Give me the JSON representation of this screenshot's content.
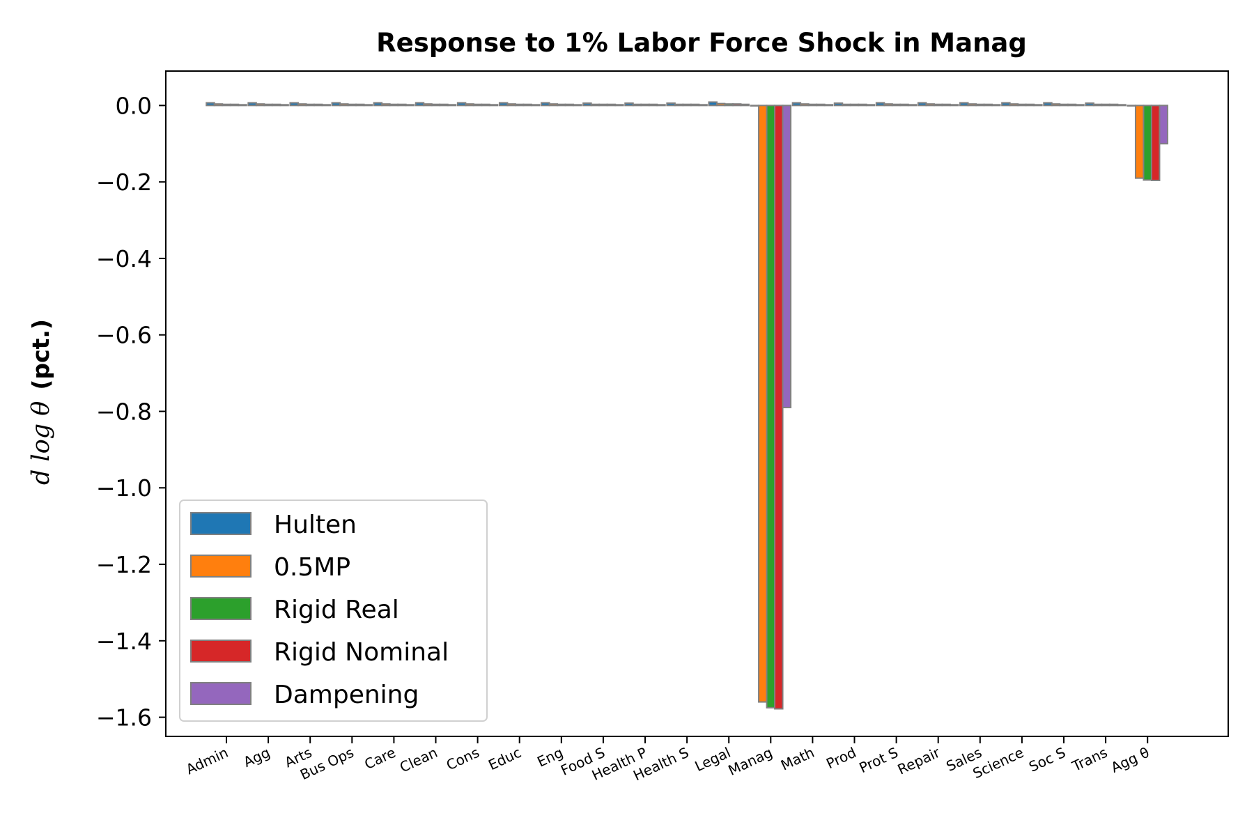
{
  "chart_data": {
    "type": "bar",
    "title": "Response to 1% Labor Force Shock in Manag",
    "ylabel_math": "d log θ",
    "ylabel_text": "(pct.)",
    "xlabel": "",
    "ylim": [
      -1.65,
      0.09
    ],
    "yticks": [
      0.0,
      -0.2,
      -0.4,
      -0.6,
      -0.8,
      -1.0,
      -1.2,
      -1.4,
      -1.6
    ],
    "ytick_labels": [
      "0.0",
      "−0.2",
      "−0.4",
      "−0.6",
      "−0.8",
      "−1.0",
      "−1.2",
      "−1.4",
      "−1.6"
    ],
    "categories": [
      "Admin",
      "Agg",
      "Arts",
      "Bus Ops",
      "Care",
      "Clean",
      "Cons",
      "Educ",
      "Eng",
      "Food S",
      "Health P",
      "Health S",
      "Legal",
      "Manag",
      "Math",
      "Prod",
      "Prot S",
      "Repair",
      "Sales",
      "Science",
      "Soc S",
      "Trans",
      "Agg θ"
    ],
    "legend_position": "lower-left",
    "bar_edge_color": "#808080",
    "series": [
      {
        "name": "Hulten",
        "color": "#1f77b4",
        "values": [
          0.007,
          0.007,
          0.007,
          0.007,
          0.007,
          0.007,
          0.007,
          0.007,
          0.007,
          0.006,
          0.006,
          0.006,
          0.009,
          0,
          0.007,
          0.006,
          0.007,
          0.007,
          0.007,
          0.007,
          0.007,
          0.006,
          0
        ]
      },
      {
        "name": "0.5MP",
        "color": "#ff7f0e",
        "values": [
          0.004,
          0.004,
          0.004,
          0.004,
          0.004,
          0.004,
          0.004,
          0.004,
          0.004,
          0.003,
          0.003,
          0.003,
          0.005,
          -1.56,
          0.004,
          0.003,
          0.004,
          0.004,
          0.004,
          0.004,
          0.004,
          0.003,
          -0.19
        ]
      },
      {
        "name": "Rigid Real",
        "color": "#2ca02c",
        "values": [
          0.003,
          0.003,
          0.003,
          0.003,
          0.003,
          0.003,
          0.003,
          0.003,
          0.003,
          0.003,
          0.003,
          0.003,
          0.004,
          -1.575,
          0.003,
          0.003,
          0.003,
          0.003,
          0.003,
          0.003,
          0.003,
          0.003,
          -0.195
        ]
      },
      {
        "name": "Rigid Nominal",
        "color": "#d62728",
        "values": [
          0.003,
          0.003,
          0.003,
          0.003,
          0.003,
          0.003,
          0.003,
          0.003,
          0.003,
          0.003,
          0.003,
          0.003,
          0.004,
          -1.578,
          0.003,
          0.003,
          0.003,
          0.003,
          0.003,
          0.003,
          0.003,
          0.003,
          -0.196
        ]
      },
      {
        "name": "Dampening",
        "color": "#9467bd",
        "values": [
          0.002,
          0.002,
          0.002,
          0.002,
          0.002,
          0.002,
          0.002,
          0.002,
          0.002,
          0.002,
          0.002,
          0.002,
          0.003,
          -0.79,
          0.002,
          0.002,
          0.002,
          0.002,
          0.002,
          0.002,
          0.002,
          0.002,
          -0.1
        ]
      }
    ]
  }
}
